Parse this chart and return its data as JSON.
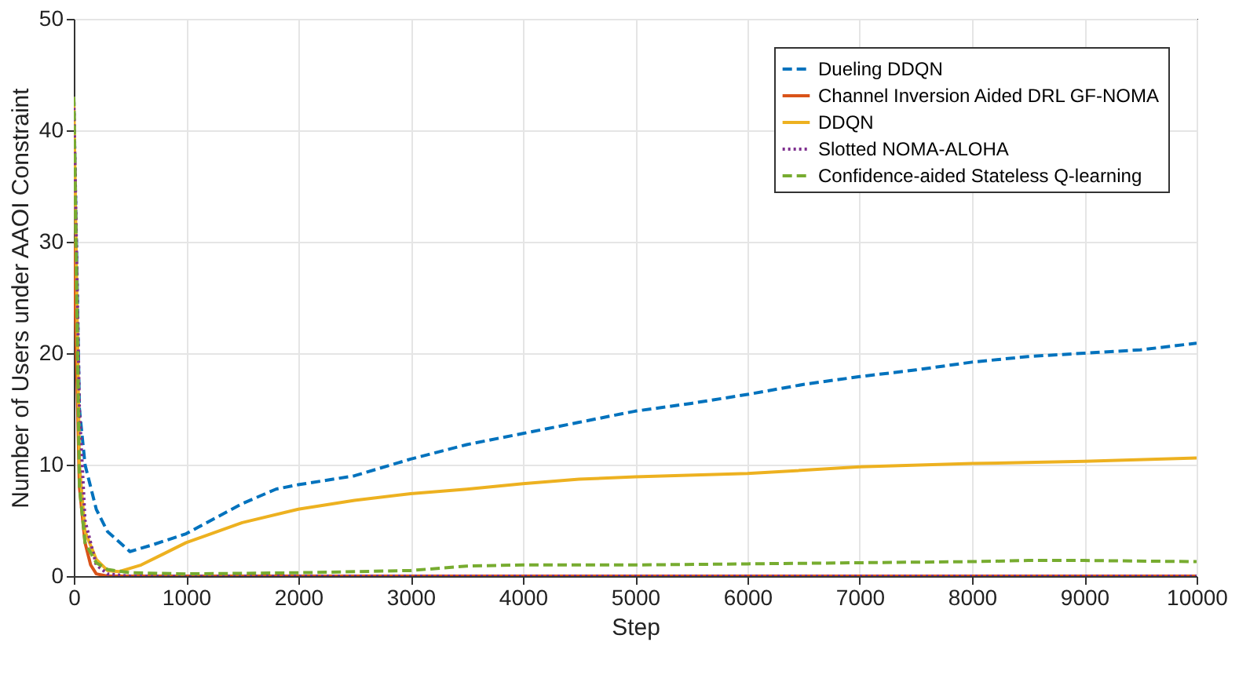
{
  "chart_data": {
    "type": "line",
    "xlabel": "Step",
    "ylabel": "Number of Users under AAOI Constraint",
    "xlim": [
      0,
      10000
    ],
    "ylim": [
      0,
      50
    ],
    "xticks": [
      0,
      1000,
      2000,
      3000,
      4000,
      5000,
      6000,
      7000,
      8000,
      9000,
      10000
    ],
    "yticks": [
      0,
      10,
      20,
      30,
      40,
      50
    ],
    "grid": true,
    "legend": "top right",
    "series": [
      {
        "name": "Dueling DDQN",
        "color": "#0072bd",
        "line_style": "dashed",
        "x": [
          0,
          50,
          100,
          200,
          300,
          500,
          700,
          1000,
          1500,
          1800,
          2000,
          2500,
          3000,
          3500,
          4000,
          4500,
          5000,
          5500,
          6000,
          6500,
          7000,
          7500,
          8000,
          8500,
          9000,
          9500,
          10000
        ],
        "values": [
          43,
          15,
          10,
          6,
          4,
          2.2,
          2.8,
          3.8,
          6.5,
          7.8,
          8.2,
          9,
          10.5,
          11.8,
          12.8,
          13.8,
          14.8,
          15.5,
          16.3,
          17.2,
          17.9,
          18.5,
          19.2,
          19.7,
          20,
          20.3,
          20.9
        ]
      },
      {
        "name": "Channel Inversion Aided DRL GF-NOMA",
        "color": "#d95319",
        "line_style": "solid",
        "x": [
          0,
          50,
          100,
          150,
          200,
          300,
          10000
        ],
        "values": [
          30,
          8,
          3,
          1,
          0.2,
          0,
          0
        ]
      },
      {
        "name": "DDQN",
        "color": "#edb120",
        "line_style": "solid",
        "x": [
          0,
          50,
          100,
          200,
          300,
          400,
          600,
          800,
          1000,
          1500,
          2000,
          2500,
          3000,
          3500,
          4000,
          4500,
          5000,
          6000,
          7000,
          8000,
          9000,
          10000
        ],
        "values": [
          43,
          10,
          4,
          1.5,
          0.5,
          0.4,
          1,
          2,
          3,
          4.8,
          6,
          6.8,
          7.4,
          7.8,
          8.3,
          8.7,
          8.9,
          9.2,
          9.8,
          10.1,
          10.3,
          10.6
        ]
      },
      {
        "name": "Slotted NOMA-ALOHA",
        "color": "#7e2f8e",
        "line_style": "dotted",
        "x": [
          0,
          50,
          100,
          200,
          300,
          500,
          10000
        ],
        "values": [
          43,
          15,
          5,
          1,
          0.2,
          0,
          0
        ]
      },
      {
        "name": "Confidence-aided Stateless Q-learning",
        "color": "#77ac30",
        "line_style": "dashed",
        "x": [
          0,
          50,
          100,
          200,
          300,
          500,
          1000,
          2000,
          3000,
          3500,
          4000,
          5000,
          6000,
          7000,
          8000,
          8500,
          9000,
          10000
        ],
        "values": [
          43,
          8,
          3,
          1.2,
          0.6,
          0.3,
          0.2,
          0.3,
          0.5,
          0.9,
          1,
          1,
          1.1,
          1.2,
          1.3,
          1.4,
          1.4,
          1.3
        ]
      }
    ]
  }
}
